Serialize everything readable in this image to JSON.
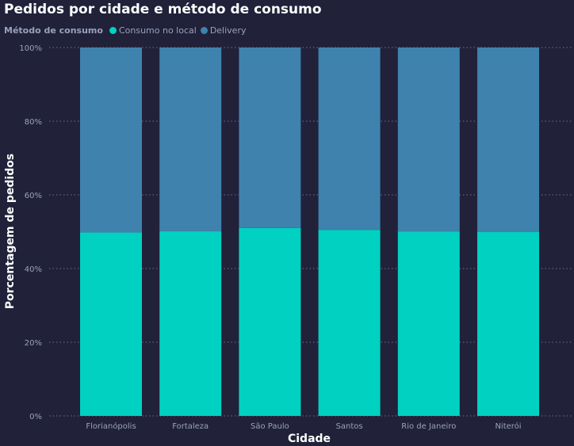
{
  "title": "Pedidos por cidade e método de consumo",
  "legend": {
    "title": "Método de consumo"
  },
  "chart_data": {
    "type": "bar",
    "stacked": "100%",
    "title": "Pedidos por cidade e método de consumo",
    "xlabel": "Cidade",
    "ylabel": "Porcentagem de pedidos",
    "categories": [
      "Florianópolis",
      "Fortaleza",
      "São Paulo",
      "Santos",
      "Rio de Janeiro",
      "Niterói"
    ],
    "series": [
      {
        "name": "Consumo no local",
        "color": "#01d1c1",
        "values": [
          49.8,
          50.1,
          51.0,
          50.5,
          50.0,
          49.9
        ]
      },
      {
        "name": "Delivery",
        "color": "#3f82ae",
        "values": [
          50.2,
          49.9,
          49.0,
          49.5,
          50.0,
          50.1
        ]
      }
    ],
    "ylim": [
      0,
      100
    ],
    "yticks": [
      "0%",
      "20%",
      "40%",
      "60%",
      "80%",
      "100%"
    ],
    "grid": "horizontal dotted",
    "legend_position": "top-left"
  }
}
